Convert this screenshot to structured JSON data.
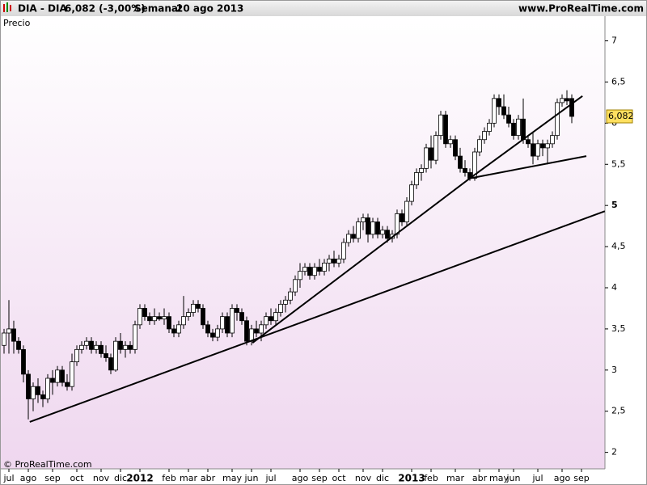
{
  "header": {
    "symbol": "DIA - DIA",
    "quote": "6,082 (-3,00%)",
    "period": "Semanal",
    "date": "20 ago 2013",
    "site": "www.ProRealTime.com"
  },
  "chart_data": {
    "type": "candlestick",
    "label": "Precio",
    "copyright": "© ProRealTime.com",
    "categories": [
      null,
      "jul",
      null,
      null,
      null,
      "ago",
      null,
      null,
      null,
      null,
      "sep",
      null,
      null,
      null,
      null,
      "oct",
      null,
      null,
      null,
      null,
      "nov",
      null,
      null,
      null,
      "dic",
      null,
      null,
      null,
      "2012",
      null,
      null,
      null,
      null,
      null,
      "feb",
      null,
      null,
      null,
      "mar",
      null,
      null,
      null,
      "abr",
      null,
      null,
      null,
      null,
      "may",
      null,
      null,
      null,
      "jun",
      null,
      null,
      null,
      "jul",
      null,
      null,
      null,
      null,
      null,
      "ago",
      null,
      null,
      null,
      "sep",
      null,
      null,
      null,
      "oct",
      null,
      null,
      null,
      null,
      "nov",
      null,
      null,
      null,
      "dic",
      null,
      null,
      null,
      null,
      null,
      "2013",
      null,
      null,
      null,
      "feb",
      null,
      null,
      null,
      null,
      "mar",
      null,
      null,
      null,
      null,
      "abr",
      null,
      null,
      null,
      "may",
      null,
      null,
      "jun",
      null,
      null,
      null,
      null,
      "jul",
      null,
      null,
      null,
      null,
      "ago",
      null,
      null,
      null,
      "sep"
    ],
    "candles": [
      [
        3.3,
        3.5,
        3.2,
        3.45
      ],
      [
        3.45,
        3.85,
        3.2,
        3.5
      ],
      [
        3.5,
        3.6,
        3.2,
        3.35
      ],
      [
        3.35,
        3.4,
        3.2,
        3.25
      ],
      [
        3.25,
        3.3,
        2.85,
        2.95
      ],
      [
        2.95,
        3.0,
        2.4,
        2.65
      ],
      [
        2.65,
        2.85,
        2.5,
        2.8
      ],
      [
        2.8,
        2.9,
        2.6,
        2.7
      ],
      [
        2.7,
        2.75,
        2.55,
        2.65
      ],
      [
        2.65,
        2.95,
        2.6,
        2.9
      ],
      [
        2.9,
        3.0,
        2.7,
        2.85
      ],
      [
        2.85,
        3.05,
        2.8,
        3.0
      ],
      [
        3.0,
        3.05,
        2.8,
        2.85
      ],
      [
        2.85,
        2.95,
        2.75,
        2.8
      ],
      [
        2.8,
        3.2,
        2.75,
        3.1
      ],
      [
        3.1,
        3.3,
        3.05,
        3.25
      ],
      [
        3.25,
        3.35,
        3.2,
        3.3
      ],
      [
        3.3,
        3.4,
        3.25,
        3.35
      ],
      [
        3.35,
        3.4,
        3.2,
        3.25
      ],
      [
        3.25,
        3.35,
        3.2,
        3.3
      ],
      [
        3.3,
        3.35,
        3.15,
        3.2
      ],
      [
        3.2,
        3.3,
        3.1,
        3.15
      ],
      [
        3.15,
        3.2,
        2.95,
        3.0
      ],
      [
        3.0,
        3.4,
        2.98,
        3.35
      ],
      [
        3.35,
        3.45,
        3.2,
        3.25
      ],
      [
        3.25,
        3.35,
        3.15,
        3.3
      ],
      [
        3.3,
        3.35,
        3.2,
        3.25
      ],
      [
        3.25,
        3.6,
        3.2,
        3.55
      ],
      [
        3.55,
        3.8,
        3.5,
        3.75
      ],
      [
        3.75,
        3.8,
        3.6,
        3.65
      ],
      [
        3.65,
        3.7,
        3.55,
        3.6
      ],
      [
        3.6,
        3.75,
        3.55,
        3.65
      ],
      [
        3.65,
        3.7,
        3.6,
        3.62
      ],
      [
        3.62,
        3.75,
        3.55,
        3.65
      ],
      [
        3.65,
        3.7,
        3.45,
        3.5
      ],
      [
        3.5,
        3.55,
        3.4,
        3.45
      ],
      [
        3.45,
        3.6,
        3.4,
        3.55
      ],
      [
        3.55,
        3.9,
        3.5,
        3.65
      ],
      [
        3.65,
        3.75,
        3.6,
        3.7
      ],
      [
        3.7,
        3.85,
        3.65,
        3.8
      ],
      [
        3.8,
        3.85,
        3.7,
        3.75
      ],
      [
        3.75,
        3.8,
        3.5,
        3.55
      ],
      [
        3.55,
        3.6,
        3.4,
        3.45
      ],
      [
        3.45,
        3.5,
        3.35,
        3.4
      ],
      [
        3.4,
        3.55,
        3.35,
        3.5
      ],
      [
        3.5,
        3.7,
        3.45,
        3.65
      ],
      [
        3.65,
        3.7,
        3.4,
        3.45
      ],
      [
        3.45,
        3.8,
        3.4,
        3.75
      ],
      [
        3.75,
        3.8,
        3.6,
        3.7
      ],
      [
        3.7,
        3.75,
        3.55,
        3.6
      ],
      [
        3.6,
        3.65,
        3.3,
        3.35
      ],
      [
        3.35,
        3.55,
        3.3,
        3.5
      ],
      [
        3.5,
        3.6,
        3.4,
        3.45
      ],
      [
        3.45,
        3.6,
        3.35,
        3.55
      ],
      [
        3.55,
        3.7,
        3.5,
        3.65
      ],
      [
        3.65,
        3.75,
        3.55,
        3.6
      ],
      [
        3.6,
        3.75,
        3.55,
        3.7
      ],
      [
        3.7,
        3.85,
        3.65,
        3.8
      ],
      [
        3.8,
        3.9,
        3.7,
        3.85
      ],
      [
        3.85,
        4.0,
        3.8,
        3.95
      ],
      [
        3.95,
        4.15,
        3.9,
        4.1
      ],
      [
        4.1,
        4.3,
        4.0,
        4.2
      ],
      [
        4.2,
        4.3,
        4.15,
        4.25
      ],
      [
        4.25,
        4.3,
        4.1,
        4.15
      ],
      [
        4.15,
        4.3,
        4.1,
        4.25
      ],
      [
        4.25,
        4.35,
        4.15,
        4.2
      ],
      [
        4.2,
        4.35,
        4.15,
        4.3
      ],
      [
        4.3,
        4.4,
        4.2,
        4.35
      ],
      [
        4.35,
        4.45,
        4.25,
        4.3
      ],
      [
        4.3,
        4.4,
        4.25,
        4.35
      ],
      [
        4.35,
        4.6,
        4.3,
        4.55
      ],
      [
        4.55,
        4.7,
        4.5,
        4.65
      ],
      [
        4.65,
        4.75,
        4.55,
        4.6
      ],
      [
        4.6,
        4.85,
        4.55,
        4.8
      ],
      [
        4.8,
        4.9,
        4.7,
        4.85
      ],
      [
        4.85,
        4.9,
        4.55,
        4.65
      ],
      [
        4.65,
        4.85,
        4.6,
        4.8
      ],
      [
        4.8,
        4.85,
        4.6,
        4.65
      ],
      [
        4.65,
        4.75,
        4.6,
        4.7
      ],
      [
        4.7,
        4.75,
        4.55,
        4.6
      ],
      [
        4.6,
        4.7,
        4.55,
        4.65
      ],
      [
        4.65,
        4.95,
        4.6,
        4.9
      ],
      [
        4.9,
        4.95,
        4.75,
        4.8
      ],
      [
        4.8,
        5.1,
        4.75,
        5.05
      ],
      [
        5.05,
        5.3,
        5.0,
        5.25
      ],
      [
        5.25,
        5.45,
        5.2,
        5.4
      ],
      [
        5.4,
        5.5,
        5.3,
        5.45
      ],
      [
        5.45,
        5.75,
        5.4,
        5.7
      ],
      [
        5.7,
        5.85,
        5.45,
        5.55
      ],
      [
        5.55,
        5.9,
        5.5,
        5.85
      ],
      [
        5.85,
        6.15,
        5.8,
        6.1
      ],
      [
        6.1,
        6.15,
        5.7,
        5.75
      ],
      [
        5.75,
        5.85,
        5.7,
        5.8
      ],
      [
        5.8,
        5.85,
        5.55,
        5.6
      ],
      [
        5.6,
        5.7,
        5.4,
        5.45
      ],
      [
        5.45,
        5.55,
        5.35,
        5.4
      ],
      [
        5.4,
        5.45,
        5.3,
        5.33
      ],
      [
        5.33,
        5.7,
        5.3,
        5.65
      ],
      [
        5.65,
        5.85,
        5.6,
        5.8
      ],
      [
        5.8,
        5.95,
        5.75,
        5.9
      ],
      [
        5.9,
        6.05,
        5.85,
        6.0
      ],
      [
        6.0,
        6.35,
        5.95,
        6.3
      ],
      [
        6.3,
        6.35,
        6.1,
        6.2
      ],
      [
        6.2,
        6.35,
        6.05,
        6.1
      ],
      [
        6.1,
        6.2,
        5.95,
        6.0
      ],
      [
        6.0,
        6.05,
        5.8,
        5.85
      ],
      [
        5.85,
        6.1,
        5.8,
        6.05
      ],
      [
        6.05,
        6.3,
        5.75,
        5.8
      ],
      [
        5.8,
        5.85,
        5.7,
        5.75
      ],
      [
        5.75,
        5.9,
        5.5,
        5.6
      ],
      [
        5.6,
        5.8,
        5.55,
        5.75
      ],
      [
        5.75,
        5.8,
        5.6,
        5.7
      ],
      [
        5.7,
        5.8,
        5.5,
        5.75
      ],
      [
        5.75,
        5.9,
        5.7,
        5.85
      ],
      [
        5.85,
        6.3,
        5.8,
        6.25
      ],
      [
        6.25,
        6.35,
        6.2,
        6.3
      ],
      [
        6.3,
        6.4,
        6.22,
        6.27
      ],
      [
        6.3,
        6.35,
        6.0,
        6.082
      ],
      null,
      null
    ],
    "last": {
      "value": 6.082,
      "label": "6,082"
    },
    "trendlines": [
      [
        [
          5.3,
          2.37
        ],
        [
          123.8,
          4.93
        ]
      ],
      [
        [
          51.2,
          3.33
        ],
        [
          96,
          5.33
        ],
        [
          119.2,
          6.33
        ]
      ],
      [
        [
          96,
          5.33
        ],
        [
          120,
          5.6
        ]
      ]
    ],
    "ylim": [
      1.8,
      7.3
    ],
    "yticks": [
      2,
      {
        "value": 2.5,
        "label": "2,5"
      },
      3,
      {
        "value": 3.5,
        "label": "3,5"
      },
      4,
      {
        "value": 4.5,
        "label": "4,5"
      },
      5,
      {
        "value": 5.5,
        "label": "5,5"
      },
      6,
      {
        "value": 6.5,
        "label": "6,5"
      },
      7
    ],
    "bold_ytick": 5
  }
}
